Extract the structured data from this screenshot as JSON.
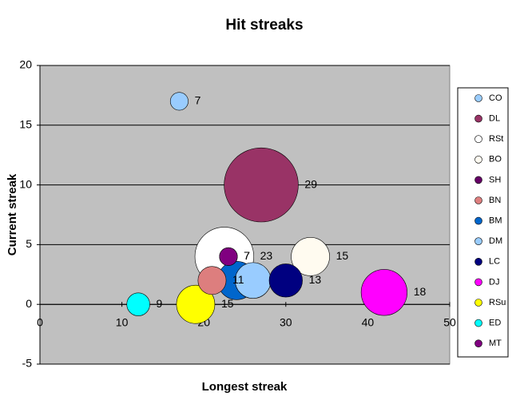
{
  "chart_data": {
    "type": "bubble",
    "title": "Hit streaks",
    "x_label": "Longest streak",
    "y_label": "Current streak",
    "xlim": [
      0,
      50
    ],
    "xticks": [
      0,
      10,
      20,
      30,
      40,
      50
    ],
    "ylim": [
      -5,
      20
    ],
    "yticks": [
      -5,
      0,
      5,
      10,
      15,
      20
    ],
    "grid": true,
    "legend": "right",
    "series": [
      {
        "name": "CO",
        "color": "#99ccff",
        "x": [
          17
        ],
        "values": [
          17
        ],
        "sizes": [
          7
        ]
      },
      {
        "name": "DL",
        "color": "#993366",
        "x": [
          27
        ],
        "values": [
          10
        ],
        "sizes": [
          29
        ]
      },
      {
        "name": "RSt",
        "color": "#ffffff",
        "x": [
          22.5
        ],
        "values": [
          4
        ],
        "sizes": [
          23
        ]
      },
      {
        "name": "BO",
        "color": "#fffbf0",
        "x": [
          33
        ],
        "values": [
          4
        ],
        "sizes": [
          15
        ]
      },
      {
        "name": "SH",
        "color": "#660066",
        "x": [
          23
        ],
        "values": [
          4
        ],
        "sizes": [
          7
        ]
      },
      {
        "name": "BN",
        "color": "#dd7e7e",
        "x": [
          21
        ],
        "values": [
          2
        ],
        "sizes": [
          11
        ]
      },
      {
        "name": "BM",
        "color": "#0066cc",
        "x": [
          24
        ],
        "values": [
          2
        ],
        "sizes": [
          15
        ]
      },
      {
        "name": "DM",
        "color": "#99ccff",
        "x": [
          26
        ],
        "values": [
          2
        ],
        "sizes": [
          14
        ]
      },
      {
        "name": "LC",
        "color": "#000080",
        "x": [
          30
        ],
        "values": [
          2
        ],
        "sizes": [
          13
        ]
      },
      {
        "name": "DJ",
        "color": "#ff00ff",
        "x": [
          42
        ],
        "values": [
          1
        ],
        "sizes": [
          18
        ]
      },
      {
        "name": "RSu",
        "color": "#ffff00",
        "x": [
          19
        ],
        "values": [
          0
        ],
        "sizes": [
          15
        ]
      },
      {
        "name": "ED",
        "color": "#00ffff",
        "x": [
          12
        ],
        "values": [
          0
        ],
        "sizes": [
          9
        ]
      },
      {
        "name": "MT",
        "color": "#800080",
        "x": [
          23
        ],
        "values": [
          4
        ],
        "sizes": [
          7
        ]
      }
    ]
  }
}
